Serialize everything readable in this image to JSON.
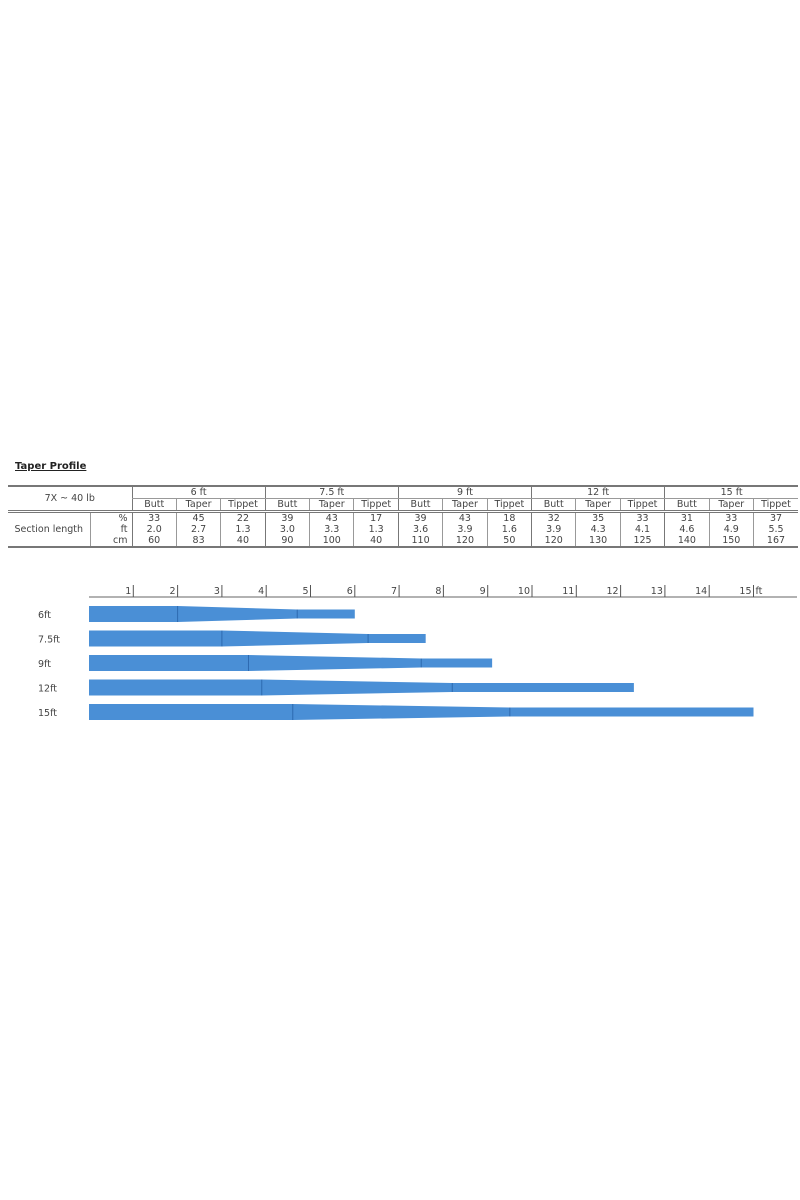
{
  "title": "Taper Profile",
  "chart_data": {
    "type": "table",
    "corner_label": "7X ~ 40 lb",
    "row_group_label": "Section length",
    "units": [
      "%",
      "ft",
      "cm"
    ],
    "lengths": [
      "6 ft",
      "7.5 ft",
      "9 ft",
      "12 ft",
      "15 ft"
    ],
    "sections": [
      "Butt",
      "Taper",
      "Tippet"
    ],
    "values": {
      "%": [
        [
          33,
          45,
          22
        ],
        [
          39,
          43,
          17
        ],
        [
          39,
          43,
          18
        ],
        [
          32,
          35,
          33
        ],
        [
          31,
          33,
          37
        ]
      ],
      "ft": [
        [
          "2.0",
          "2.7",
          "1.3"
        ],
        [
          "3.0",
          "3.3",
          "1.3"
        ],
        [
          "3.6",
          "3.9",
          "1.6"
        ],
        [
          "3.9",
          "4.3",
          "4.1"
        ],
        [
          "4.6",
          "4.9",
          "5.5"
        ]
      ],
      "cm": [
        [
          60,
          83,
          40
        ],
        [
          90,
          100,
          40
        ],
        [
          110,
          120,
          50
        ],
        [
          120,
          130,
          125
        ],
        [
          140,
          150,
          167
        ]
      ]
    },
    "profile": {
      "type": "bar",
      "axis_ticks": [
        "1",
        "2",
        "3",
        "4",
        "5",
        "6",
        "7",
        "8",
        "9",
        "10",
        "11",
        "12",
        "13",
        "14",
        "15"
      ],
      "axis_unit": "ft",
      "xlim": [
        0,
        15.5
      ],
      "bar_labels": [
        "6ft",
        "7.5ft",
        "9ft",
        "12ft",
        "15ft"
      ],
      "color": "#4a8fd6"
    }
  }
}
